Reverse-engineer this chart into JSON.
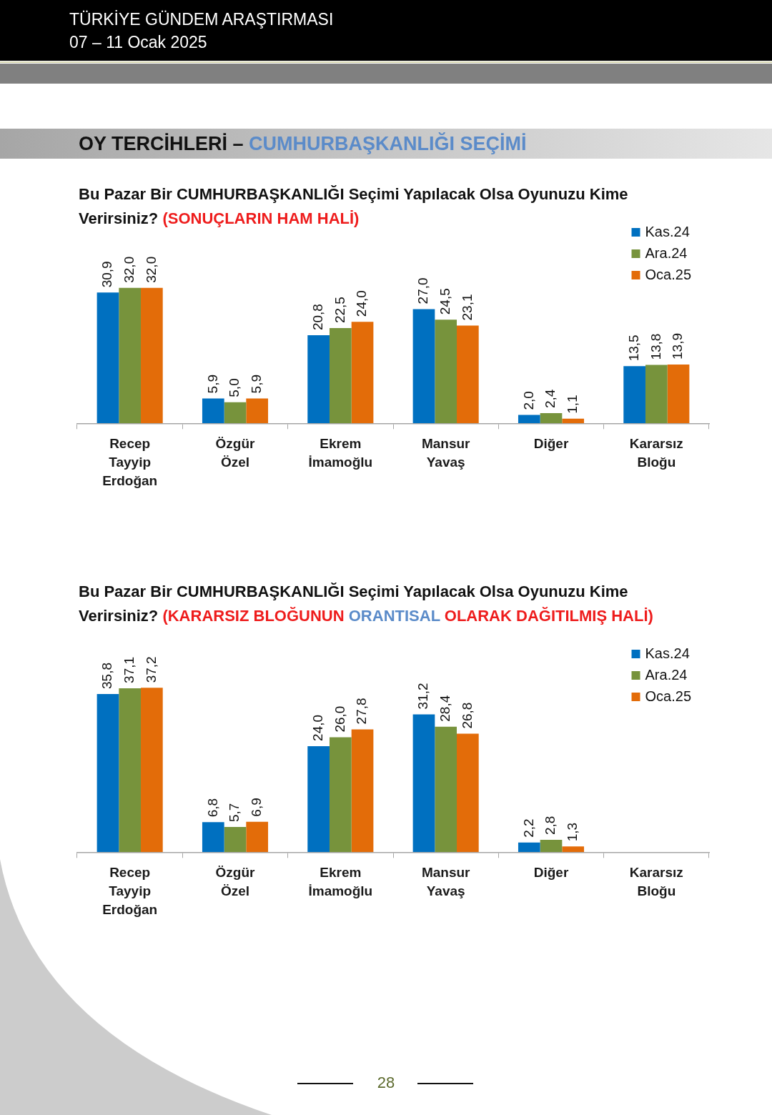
{
  "chart_data": [
    {
      "type": "bar",
      "title": "Bu Pazar Bir CUMHURBAŞKANLIĞI Seçimi Yapılacak Olsa Oyunuzu Kime Verirsiniz?",
      "subtitle": "(SONUÇLARIN HAM HALİ)",
      "annotations": [
        "TÜRKİYE GÜNDEM ARAŞTIRMASI",
        "07 – 11 Ocak 2025",
        "OY TERCİHLERİ –",
        "CUMHURBAŞKANLIĞI SEÇİMİ"
      ],
      "categories": [
        "Recep Tayyip Erdoğan",
        "Özgür Özel",
        "Ekrem İmamoğlu",
        "Mansur Yavaş",
        "Diğer",
        "Kararsız Bloğu"
      ],
      "series": [
        {
          "name": "Kas.24",
          "color": "#0070c0",
          "values": [
            30.9,
            5.9,
            20.8,
            27.0,
            2.0,
            13.5
          ],
          "value_labels": [
            "30,9",
            "5,9",
            "20,8",
            "27,0",
            "2,0",
            "13,5"
          ]
        },
        {
          "name": "Ara.24",
          "color": "#77933c",
          "values": [
            32.0,
            5.0,
            22.5,
            24.5,
            2.4,
            13.8
          ],
          "value_labels": [
            "32,0",
            "5,0",
            "22,5",
            "24,5",
            "2,4",
            "13,8"
          ]
        },
        {
          "name": "Oca.25",
          "color": "#e36c09",
          "values": [
            32.0,
            5.9,
            24.0,
            23.1,
            1.1,
            13.9
          ],
          "value_labels": [
            "32,0",
            "5,9",
            "24,0",
            "23,1",
            "1,1",
            "13,9"
          ]
        }
      ],
      "legend": "top right",
      "tick_labels": "x"
    },
    {
      "type": "bar",
      "title": "Bu Pazar Bir CUMHURBAŞKANLIĞI Seçimi Yapılacak Olsa Oyunuzu Kime Verirsiniz?",
      "subtitle": "(KARARSIZ BLOĞUNUN ORANTISAL OLARAK DAĞITILMIŞ HALİ)",
      "annotations": [
        "28"
      ],
      "categories": [
        "Recep Tayyip Erdoğan",
        "Özgür Özel",
        "Ekrem İmamoğlu",
        "Mansur Yavaş",
        "Diğer",
        "Kararsız Bloğu"
      ],
      "series": [
        {
          "name": "Kas.24",
          "color": "#0070c0",
          "values": [
            35.8,
            6.8,
            24.0,
            31.2,
            2.2,
            null
          ],
          "value_labels": [
            "35,8",
            "6,8",
            "24,0",
            "31,2",
            "2,2",
            null
          ]
        },
        {
          "name": "Ara.24",
          "color": "#77933c",
          "values": [
            37.1,
            5.7,
            26.0,
            28.4,
            2.8,
            null
          ],
          "value_labels": [
            "37,1",
            "5,7",
            "26,0",
            "28,4",
            "2,8",
            null
          ]
        },
        {
          "name": "Oca.25",
          "color": "#e36c09",
          "values": [
            37.2,
            6.9,
            27.8,
            26.8,
            1.3,
            null
          ],
          "value_labels": [
            "37,2",
            "6,9",
            "27,8",
            "26,8",
            "1,3",
            null
          ]
        }
      ],
      "legend": "top right",
      "tick_labels": "x"
    }
  ]
}
